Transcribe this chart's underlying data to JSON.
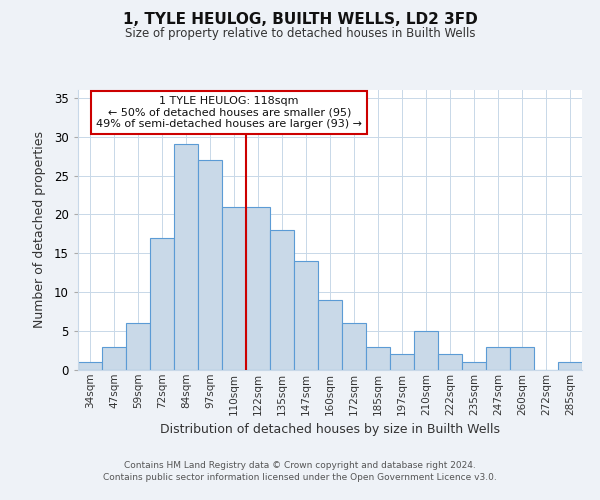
{
  "title": "1, TYLE HEULOG, BUILTH WELLS, LD2 3FD",
  "subtitle": "Size of property relative to detached houses in Builth Wells",
  "xlabel": "Distribution of detached houses by size in Builth Wells",
  "ylabel": "Number of detached properties",
  "bar_labels": [
    "34sqm",
    "47sqm",
    "59sqm",
    "72sqm",
    "84sqm",
    "97sqm",
    "110sqm",
    "122sqm",
    "135sqm",
    "147sqm",
    "160sqm",
    "172sqm",
    "185sqm",
    "197sqm",
    "210sqm",
    "222sqm",
    "235sqm",
    "247sqm",
    "260sqm",
    "272sqm",
    "285sqm"
  ],
  "bar_values": [
    1,
    3,
    6,
    17,
    29,
    27,
    21,
    21,
    18,
    14,
    9,
    6,
    3,
    2,
    5,
    2,
    1,
    3,
    3,
    0,
    1
  ],
  "bar_color": "#c9d9e8",
  "bar_edge_color": "#5b9bd5",
  "vline_color": "#cc0000",
  "vline_x": 6.5,
  "annotation_title": "1 TYLE HEULOG: 118sqm",
  "annotation_line1": "← 50% of detached houses are smaller (95)",
  "annotation_line2": "49% of semi-detached houses are larger (93) →",
  "annotation_box_color": "#ffffff",
  "annotation_box_edge_color": "#cc0000",
  "ylim": [
    0,
    36
  ],
  "yticks": [
    0,
    5,
    10,
    15,
    20,
    25,
    30,
    35
  ],
  "footer1": "Contains HM Land Registry data © Crown copyright and database right 2024.",
  "footer2": "Contains public sector information licensed under the Open Government Licence v3.0.",
  "bg_color": "#eef2f7",
  "plot_bg_color": "#ffffff",
  "grid_color": "#c8d8e8",
  "title_fontsize": 11,
  "subtitle_fontsize": 8.5,
  "xlabel_fontsize": 9,
  "ylabel_fontsize": 9,
  "tick_fontsize": 7.5,
  "ytick_fontsize": 8.5,
  "footer_fontsize": 6.5,
  "ann_fontsize": 8.0
}
